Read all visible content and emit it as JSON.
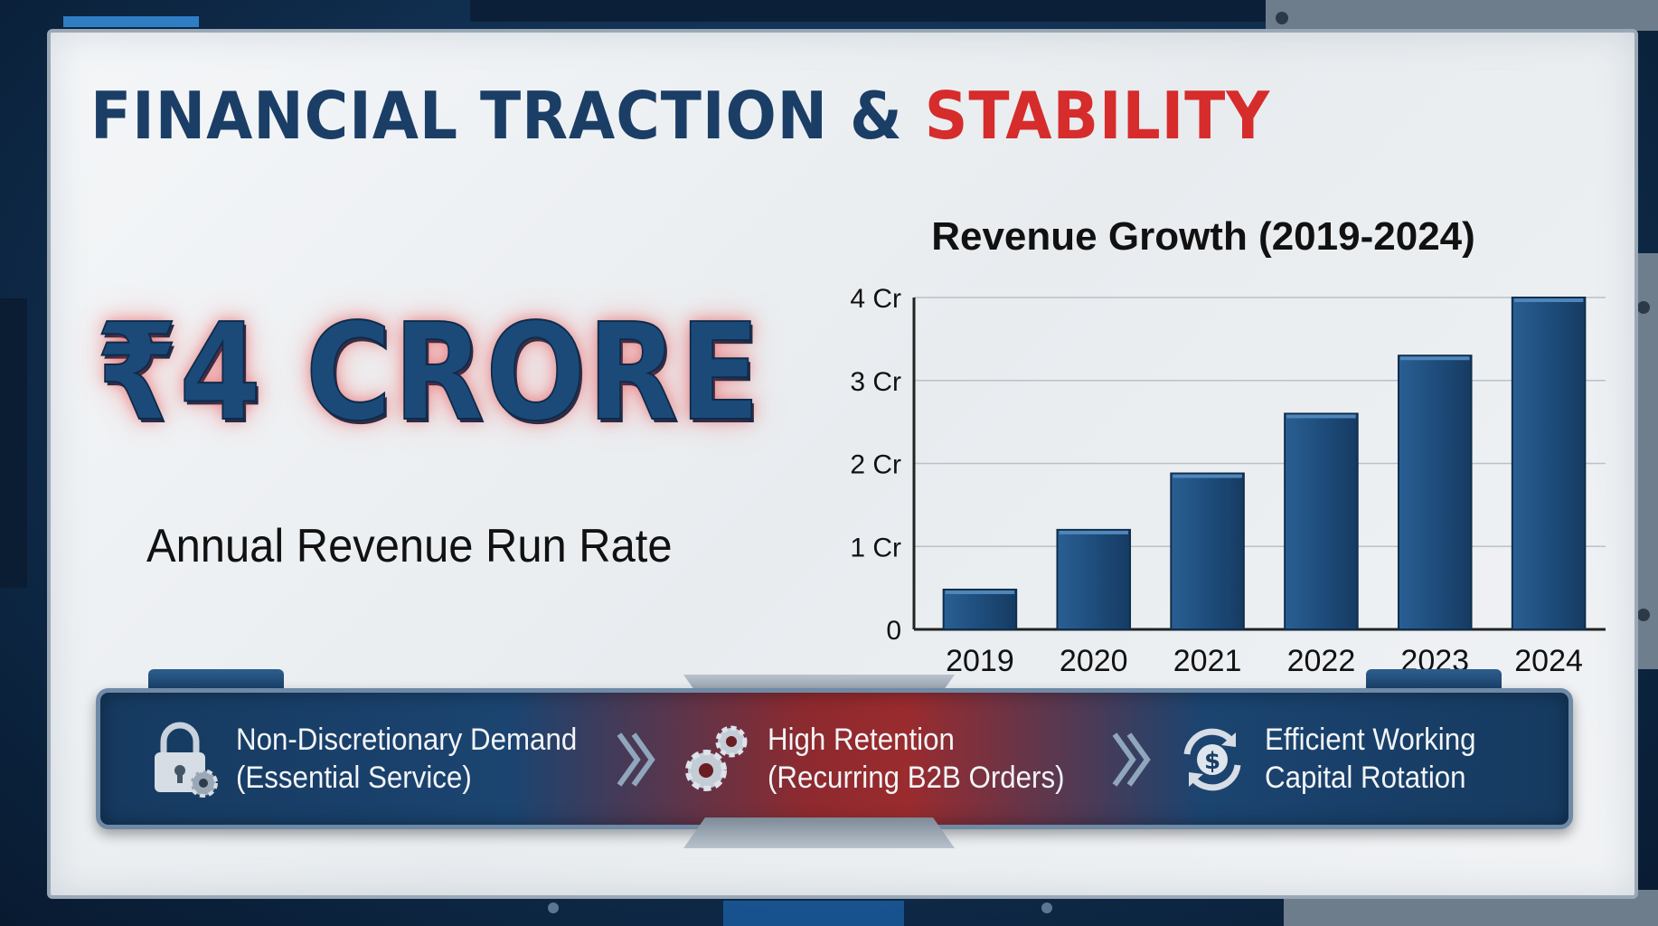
{
  "headline": {
    "part1": "FINANCIAL TRACTION &",
    "part2": "STABILITY"
  },
  "hero": {
    "amount": "₹4 CRORE",
    "caption": "Annual Revenue Run Rate"
  },
  "chart_data": {
    "type": "bar",
    "title": "Revenue Growth (2019-2024)",
    "categories": [
      "2019",
      "2020",
      "2021",
      "2022",
      "2023",
      "2024"
    ],
    "values": [
      0.48,
      1.2,
      1.88,
      2.6,
      3.3,
      4.0
    ],
    "ylim": [
      0,
      4
    ],
    "yticks": [
      0,
      1,
      2,
      3,
      4
    ],
    "ytick_labels": [
      "0",
      "1 Cr",
      "2 Cr",
      "3 Cr",
      "4 Cr"
    ],
    "xlabel": "",
    "ylabel": "",
    "grid": true,
    "bar_color": "#1e4d7c"
  },
  "banner": {
    "items": [
      {
        "line1": "Non-Discretionary Demand",
        "line2": "(Essential Service)",
        "icon": "lock-gear-icon"
      },
      {
        "line1": "High Retention",
        "line2": "(Recurring B2B Orders)",
        "icon": "gears-icon"
      },
      {
        "line1": "Efficient Working",
        "line2": "Capital Rotation",
        "icon": "dollar-cycle-icon"
      }
    ]
  },
  "colors": {
    "navy": "#1b3e66",
    "accent_red": "#d62c2c"
  }
}
